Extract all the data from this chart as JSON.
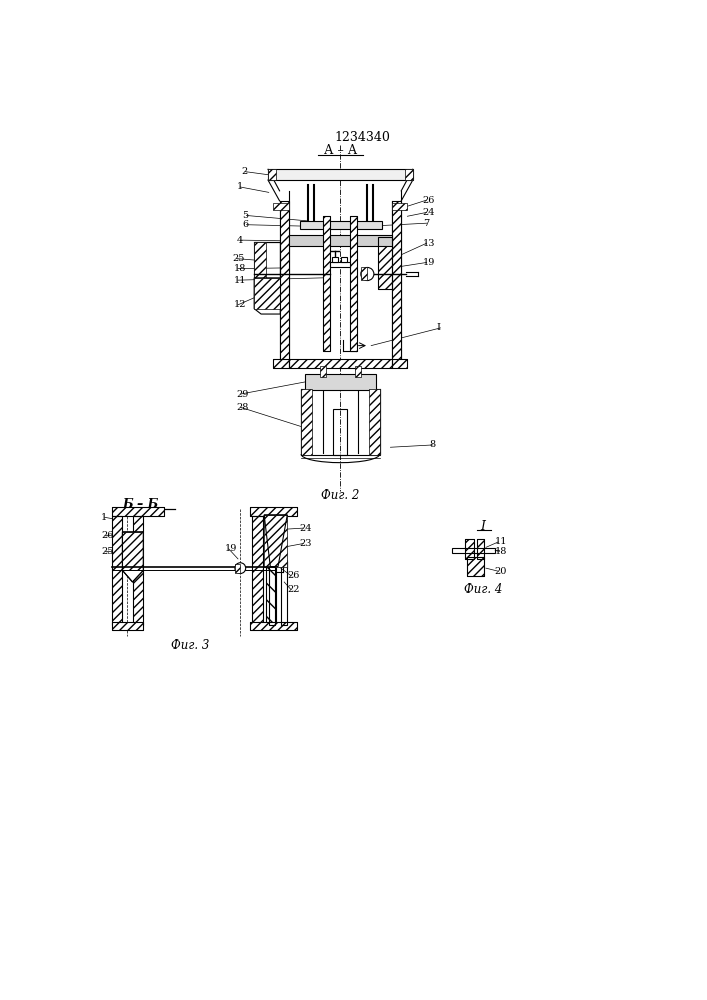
{
  "patent_number": "1234340",
  "fig2_label": "А – А",
  "fig2_caption": "Фиг. 2",
  "fig3_section": "Б – Б",
  "fig3_caption": "Фиг. 3",
  "fig4_caption": "Фиг. 4",
  "fig4_label": "I",
  "bg_color": "#ffffff"
}
